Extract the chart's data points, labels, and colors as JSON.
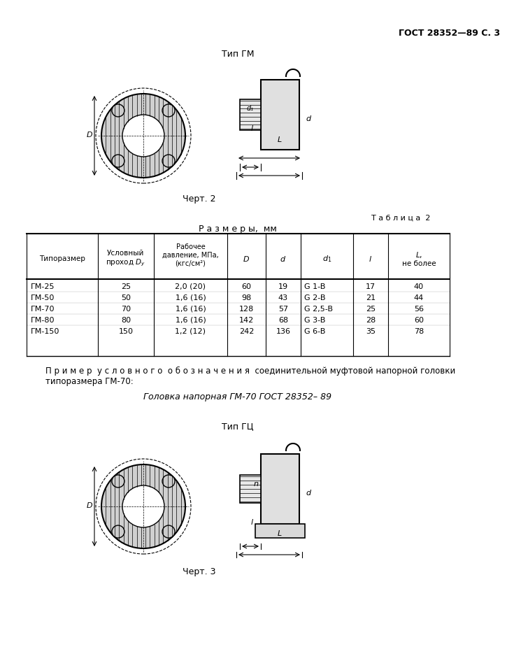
{
  "header_right": "ГОСТ 28352—89 С. 3",
  "title_gm": "Тип ГМ",
  "chert2": "Черт. 2",
  "table2_label": "Т а б л и ц а  2",
  "table_title": "Р а з м е р ы,  мм",
  "col_headers": [
    "Типоразмер",
    "Условный\nпроход Dᵥ",
    "Рабочее\nдавление, МПа,\n(кгс/см²)",
    "D",
    "d",
    "d₁",
    "l",
    "L,\nне более"
  ],
  "rows": [
    [
      "ГМ-25",
      "25",
      "2,0 (20)",
      "60",
      "19",
      "G 1-B",
      "17",
      "40"
    ],
    [
      "ГМ-50",
      "50",
      "1,6 (16)",
      "98",
      "43",
      "G 2-B",
      "21",
      "44"
    ],
    [
      "ГМ-70",
      "70",
      "1,6 (16)",
      "128",
      "57",
      "G 2,5-B",
      "25",
      "56"
    ],
    [
      "ГМ-80",
      "80",
      "1,6 (16)",
      "142",
      "68",
      "G 3-B",
      "28",
      "60"
    ],
    [
      "ГМ-150",
      "150",
      "1,2 (12)",
      "242",
      "136",
      "G 6-B",
      "35",
      "78"
    ]
  ],
  "example_text1": "П р и м е р  у с л о в н о г о  о б о з н а ч е н и я  соединительной муфтовой напорной головки",
  "example_text2": "типоразмера ГМ-70:",
  "example_italic": "Головка напорная ГМ-70 ГОСТ 28352– 89",
  "title_gc": "Тип ГЦ",
  "chert3": "Черт. 3",
  "bg_color": "#ffffff",
  "text_color": "#000000",
  "line_color": "#000000"
}
